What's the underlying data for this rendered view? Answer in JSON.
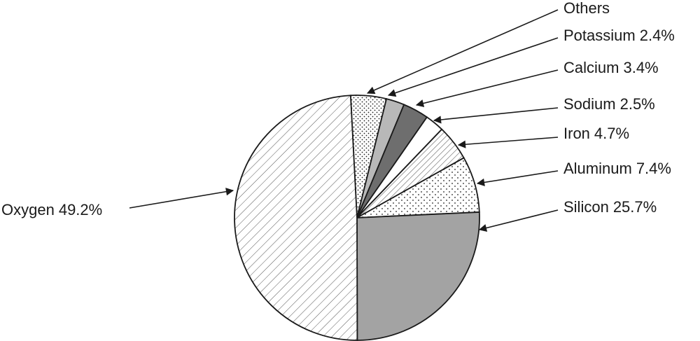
{
  "chart_data": {
    "type": "pie",
    "categories": [
      "Others",
      "Potassium",
      "Calcium",
      "Sodium",
      "Iron",
      "Aluminum",
      "Silicon",
      "Oxygen"
    ],
    "values": [
      4.7,
      2.4,
      3.4,
      2.5,
      4.7,
      7.4,
      25.7,
      49.2
    ],
    "value_labels": [
      null,
      "2.4%",
      "3.4%",
      "2.5%",
      "4.7%",
      "7.4%",
      "25.7%",
      "49.2%"
    ]
  }
}
